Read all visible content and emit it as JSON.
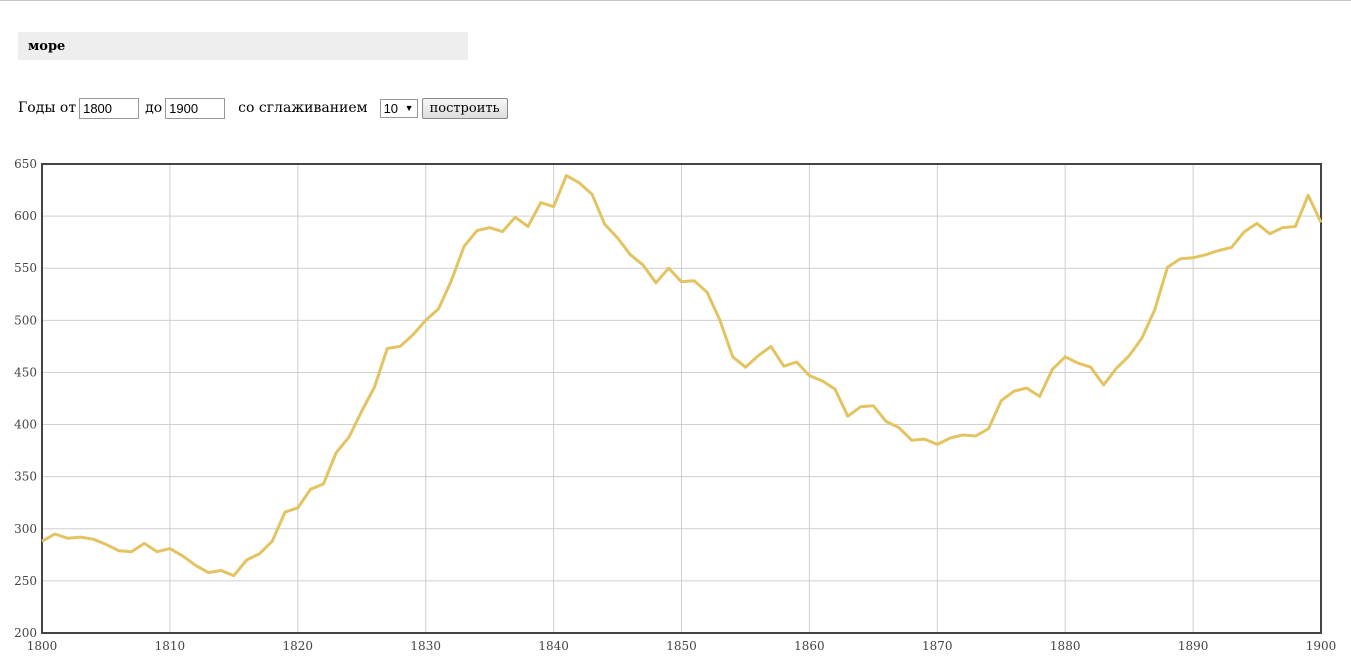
{
  "query": {
    "text": "море"
  },
  "controls": {
    "years_from_label": "Годы от",
    "year_from": "1800",
    "to_label": "до",
    "year_to": "1900",
    "smoothing_label": "со сглаживанием",
    "smoothing_value": "10",
    "build_button": "построить"
  },
  "chart_data": {
    "type": "line",
    "title": "",
    "xlabel": "",
    "ylabel": "",
    "xlim": [
      1800,
      1900
    ],
    "ylim": [
      200,
      650
    ],
    "xticks": [
      1800,
      1810,
      1820,
      1830,
      1840,
      1850,
      1860,
      1870,
      1880,
      1890,
      1900
    ],
    "yticks": [
      200,
      250,
      300,
      350,
      400,
      450,
      500,
      550,
      600,
      650
    ],
    "grid": true,
    "line_color": "#e3c462",
    "series": [
      {
        "x": [
          1800,
          1801,
          1802,
          1803,
          1804,
          1805,
          1806,
          1807,
          1808,
          1809,
          1810,
          1811,
          1812,
          1813,
          1814,
          1815,
          1816,
          1817,
          1818,
          1819,
          1820,
          1821,
          1822,
          1823,
          1824,
          1825,
          1826,
          1827,
          1828,
          1829,
          1830,
          1831,
          1832,
          1833,
          1834,
          1835,
          1836,
          1837,
          1838,
          1839,
          1840,
          1841,
          1842,
          1843,
          1844,
          1845,
          1846,
          1847,
          1848,
          1849,
          1850,
          1851,
          1852,
          1853,
          1854,
          1855,
          1856,
          1857,
          1858,
          1859,
          1860,
          1861,
          1862,
          1863,
          1864,
          1865,
          1866,
          1867,
          1868,
          1869,
          1870,
          1871,
          1872,
          1873,
          1874,
          1875,
          1876,
          1877,
          1878,
          1879,
          1880,
          1881,
          1882,
          1883,
          1884,
          1885,
          1886,
          1887,
          1888,
          1889,
          1890,
          1891,
          1892,
          1893,
          1894,
          1895,
          1896,
          1897,
          1898,
          1899,
          1900
        ],
        "values": [
          288,
          295,
          291,
          292,
          290,
          285,
          279,
          278,
          286,
          278,
          281,
          274,
          265,
          258,
          260,
          255,
          270,
          276,
          288,
          316,
          320,
          338,
          343,
          373,
          388,
          413,
          436,
          473,
          475,
          486,
          500,
          511,
          538,
          571,
          586,
          589,
          585,
          599,
          590,
          613,
          609,
          639,
          632,
          621,
          592,
          579,
          563,
          553,
          536,
          550,
          537,
          538,
          527,
          500,
          465,
          455,
          466,
          475,
          456,
          460,
          447,
          442,
          434,
          408,
          417,
          418,
          403,
          397,
          385,
          386,
          381,
          387,
          390,
          389,
          396,
          423,
          432,
          435,
          427,
          453,
          465,
          459,
          455,
          438,
          454,
          466,
          483,
          510,
          551,
          559,
          560,
          563,
          567,
          570,
          585,
          593,
          583,
          589,
          590,
          620,
          594
        ]
      }
    ]
  }
}
